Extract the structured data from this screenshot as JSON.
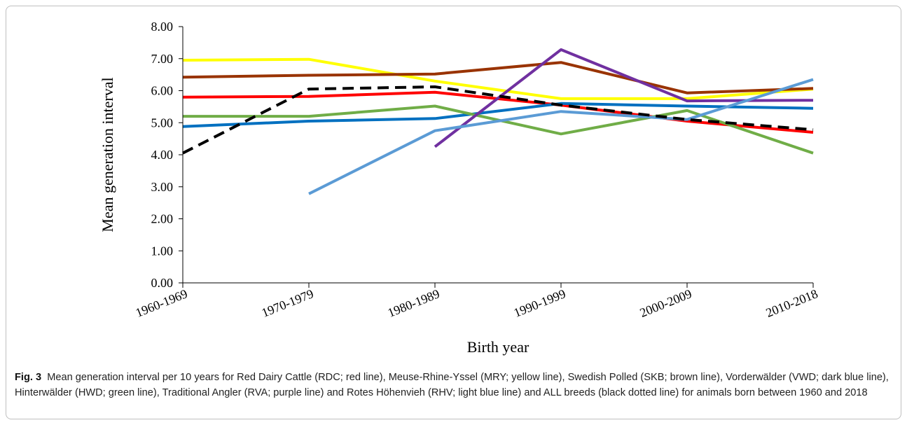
{
  "chart_data": {
    "type": "line",
    "categories": [
      "1960-1969",
      "1970-1979",
      "1980-1989",
      "1990-1999",
      "2000-2009",
      "2010-2018"
    ],
    "ylabel": "Mean generation interval",
    "xlabel": "Birth year",
    "ylim": [
      0,
      8
    ],
    "yticks": [
      "0.00",
      "1.00",
      "2.00",
      "3.00",
      "4.00",
      "5.00",
      "6.00",
      "7.00",
      "8.00"
    ],
    "grid": false,
    "series": [
      {
        "name": "RDC",
        "color": "#ff0000",
        "dashed": false,
        "values": [
          5.8,
          5.82,
          5.95,
          5.55,
          5.05,
          4.7
        ]
      },
      {
        "name": "MRY",
        "color": "#ffff00",
        "dashed": false,
        "values": [
          6.95,
          6.98,
          6.3,
          5.75,
          5.75,
          6.05
        ]
      },
      {
        "name": "SKB",
        "color": "#993300",
        "dashed": false,
        "values": [
          6.42,
          6.48,
          6.52,
          6.88,
          5.93,
          6.07
        ]
      },
      {
        "name": "VWD",
        "color": "#0070c0",
        "dashed": false,
        "values": [
          4.88,
          5.05,
          5.13,
          5.6,
          5.52,
          5.45
        ]
      },
      {
        "name": "HWD",
        "color": "#70ad47",
        "dashed": false,
        "values": [
          5.2,
          5.2,
          5.52,
          4.65,
          5.38,
          4.05
        ]
      },
      {
        "name": "RVA",
        "color": "#7030a0",
        "dashed": false,
        "values": [
          null,
          null,
          4.25,
          7.28,
          5.68,
          5.7
        ]
      },
      {
        "name": "RHV",
        "color": "#5b9bd5",
        "dashed": false,
        "values": [
          null,
          2.78,
          4.75,
          5.35,
          5.1,
          6.35
        ]
      },
      {
        "name": "ALL",
        "color": "#000000",
        "dashed": true,
        "values": [
          4.05,
          6.05,
          6.12,
          5.55,
          5.1,
          4.78
        ]
      }
    ]
  },
  "caption": {
    "label": "Fig. 3",
    "text": "Mean generation interval per 10 years for Red Dairy Cattle (RDC; red line), Meuse-Rhine-Yssel (MRY; yellow line), Swedish Polled (SKB; brown line), Vorderwälder (VWD; dark blue line), Hinterwälder (HWD; green line), Traditional Angler (RVA; purple line) and Rotes Höhenvieh (RHV; light blue line) and ALL breeds (black dotted line) for animals born between 1960 and 2018"
  }
}
